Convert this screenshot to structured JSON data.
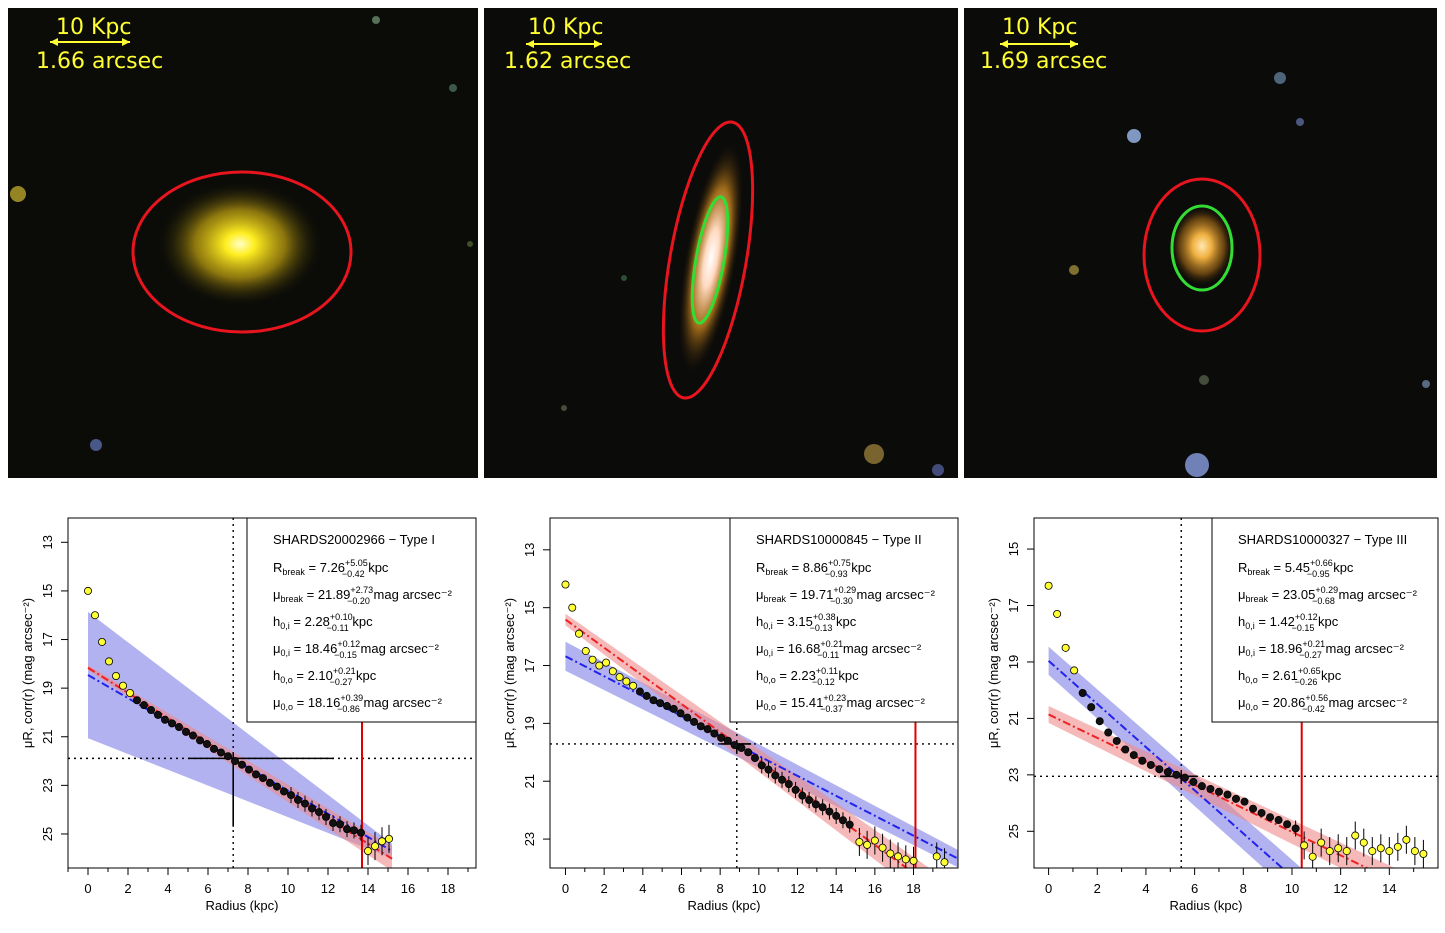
{
  "images": [
    {
      "scale_label": "10 Kpc",
      "arcsec_label": "1.66 arcsec",
      "galaxy_color": "#ffe600",
      "ellipse_outer": "#e8141e",
      "ellipse_inner": ""
    },
    {
      "scale_label": "10 Kpc",
      "arcsec_label": "1.62 arcsec",
      "galaxy_color": "#fff4e0",
      "ellipse_outer": "#e8141e",
      "ellipse_inner": "#33dd33"
    },
    {
      "scale_label": "10 Kpc",
      "arcsec_label": "1.69 arcsec",
      "galaxy_color": "#ffc64a",
      "ellipse_outer": "#e8141e",
      "ellipse_inner": "#33dd33"
    }
  ],
  "colors": {
    "inner_fit": "#2222ee",
    "inner_band": "#7f7fe6",
    "outer_fit": "#ee2222",
    "outer_band": "#f08a8a",
    "point_inner_core": "#ffff33",
    "point_fit": "#111111",
    "break_line": "#dd0000"
  },
  "chart_data": [
    {
      "type": "scatter",
      "title": "SHARDS20002966  −  Type I",
      "xlabel": "Radius (kpc)",
      "ylabel": "μR, corr(r) (mag arcsec⁻²)",
      "xlim": [
        -1,
        19.4
      ],
      "ylim": [
        26.4,
        12.0
      ],
      "xticks": [
        0,
        2,
        4,
        6,
        8,
        10,
        12,
        14,
        16,
        18
      ],
      "yticks": [
        13,
        15,
        17,
        19,
        21,
        23,
        25
      ],
      "r_break": 7.26,
      "mu_break": 21.89,
      "red_line_x": 13.7,
      "inner_fit": {
        "h": 2.28,
        "mu0": 18.46,
        "x_range": [
          0,
          15.2
        ]
      },
      "outer_fit": {
        "h": 2.1,
        "mu0": 18.16,
        "x_range": [
          0,
          15.2
        ]
      },
      "param_lines": [
        {
          "label": "R",
          "sub": "break",
          "value": "7.26",
          "sup_err": "+5.05",
          "sub_err": "−0.42",
          "unit": "kpc"
        },
        {
          "label": "μ",
          "sub": "break",
          "value": "21.89",
          "sup_err": "+2.73",
          "sub_err": "−0.20",
          "unit": "mag arcsec⁻²"
        },
        {
          "label": "h",
          "sub": "0,i",
          "value": "2.28",
          "sup_err": "+0.10",
          "sub_err": "−0.11",
          "unit": "kpc"
        },
        {
          "label": "μ",
          "sub": "0,i",
          "value": "18.46",
          "sup_err": "+0.12",
          "sub_err": "−0.15",
          "unit": "mag arcsec⁻²"
        },
        {
          "label": "h",
          "sub": "0,o",
          "value": "2.10",
          "sup_err": "+0.21",
          "sub_err": "−0.27",
          "unit": "kpc"
        },
        {
          "label": "μ",
          "sub": "0,o",
          "value": "18.16",
          "sup_err": "+0.39",
          "sub_err": "−0.86",
          "unit": "mag arcsec⁻²"
        }
      ],
      "points": [
        {
          "x": 0.0,
          "y": 15.0,
          "k": "y"
        },
        {
          "x": 0.35,
          "y": 16.0,
          "k": "y"
        },
        {
          "x": 0.7,
          "y": 17.1,
          "k": "y"
        },
        {
          "x": 1.05,
          "y": 17.9,
          "k": "y"
        },
        {
          "x": 1.4,
          "y": 18.5,
          "k": "y"
        },
        {
          "x": 1.75,
          "y": 18.9,
          "k": "y"
        },
        {
          "x": 2.1,
          "y": 19.2,
          "k": "y"
        },
        {
          "x": 2.45,
          "y": 19.5,
          "k": "b"
        },
        {
          "x": 2.8,
          "y": 19.7,
          "k": "b"
        },
        {
          "x": 3.15,
          "y": 19.9,
          "k": "b"
        },
        {
          "x": 3.5,
          "y": 20.1,
          "k": "b"
        },
        {
          "x": 3.85,
          "y": 20.3,
          "k": "b"
        },
        {
          "x": 4.2,
          "y": 20.45,
          "k": "b"
        },
        {
          "x": 4.55,
          "y": 20.6,
          "k": "b"
        },
        {
          "x": 4.9,
          "y": 20.8,
          "k": "b"
        },
        {
          "x": 5.25,
          "y": 20.95,
          "k": "b"
        },
        {
          "x": 5.6,
          "y": 21.15,
          "k": "b"
        },
        {
          "x": 5.95,
          "y": 21.3,
          "k": "b"
        },
        {
          "x": 6.3,
          "y": 21.5,
          "k": "b"
        },
        {
          "x": 6.65,
          "y": 21.65,
          "k": "b"
        },
        {
          "x": 7.0,
          "y": 21.8,
          "k": "b"
        },
        {
          "x": 7.35,
          "y": 22.0,
          "k": "b"
        },
        {
          "x": 7.7,
          "y": 22.15,
          "k": "b"
        },
        {
          "x": 8.05,
          "y": 22.35,
          "k": "b"
        },
        {
          "x": 8.4,
          "y": 22.55,
          "k": "b"
        },
        {
          "x": 8.75,
          "y": 22.7,
          "k": "b"
        },
        {
          "x": 9.1,
          "y": 22.9,
          "k": "b"
        },
        {
          "x": 9.45,
          "y": 23.05,
          "k": "b"
        },
        {
          "x": 9.8,
          "y": 23.25,
          "k": "b"
        },
        {
          "x": 10.15,
          "y": 23.4,
          "k": "b"
        },
        {
          "x": 10.5,
          "y": 23.6,
          "k": "b"
        },
        {
          "x": 10.85,
          "y": 23.75,
          "k": "b"
        },
        {
          "x": 11.2,
          "y": 23.95,
          "k": "b"
        },
        {
          "x": 11.55,
          "y": 24.1,
          "k": "b"
        },
        {
          "x": 11.9,
          "y": 24.3,
          "k": "b"
        },
        {
          "x": 12.25,
          "y": 24.55,
          "k": "b"
        },
        {
          "x": 12.6,
          "y": 24.6,
          "k": "b"
        },
        {
          "x": 12.95,
          "y": 24.8,
          "k": "b"
        },
        {
          "x": 13.3,
          "y": 24.85,
          "k": "b"
        },
        {
          "x": 13.65,
          "y": 24.95,
          "k": "b"
        },
        {
          "x": 14.0,
          "y": 25.7,
          "k": "y"
        },
        {
          "x": 14.35,
          "y": 25.5,
          "k": "y"
        },
        {
          "x": 14.7,
          "y": 25.3,
          "k": "y"
        },
        {
          "x": 15.05,
          "y": 25.2,
          "k": "y"
        }
      ]
    },
    {
      "type": "scatter",
      "title": "SHARDS10000845  −  Type II",
      "xlabel": "Radius (kpc)",
      "ylabel": "μR, corr(r) (mag arcsec⁻²)",
      "xlim": [
        -0.8,
        20.3
      ],
      "ylim": [
        24.0,
        11.9
      ],
      "xticks": [
        0,
        2,
        4,
        6,
        8,
        10,
        12,
        14,
        16,
        18
      ],
      "yticks": [
        13,
        15,
        17,
        19,
        21,
        23
      ],
      "r_break": 8.86,
      "mu_break": 19.71,
      "red_line_x": 18.1,
      "inner_fit": {
        "h": 3.15,
        "mu0": 16.68,
        "x_range": [
          0,
          20.3
        ]
      },
      "outer_fit": {
        "h": 2.23,
        "mu0": 15.41,
        "x_range": [
          0,
          20.3
        ]
      },
      "param_lines": [
        {
          "label": "R",
          "sub": "break",
          "value": "8.86",
          "sup_err": "+0.75",
          "sub_err": "−0.93",
          "unit": "kpc"
        },
        {
          "label": "μ",
          "sub": "break",
          "value": "19.71",
          "sup_err": "+0.29",
          "sub_err": "−0.30",
          "unit": "mag arcsec⁻²"
        },
        {
          "label": "h",
          "sub": "0,i",
          "value": "3.15",
          "sup_err": "+0.38",
          "sub_err": "−0.13",
          "unit": "kpc"
        },
        {
          "label": "μ",
          "sub": "0,i",
          "value": "16.68",
          "sup_err": "+0.21",
          "sub_err": "−0.11",
          "unit": "mag arcsec⁻²"
        },
        {
          "label": "h",
          "sub": "0,o",
          "value": "2.23",
          "sup_err": "+0.11",
          "sub_err": "−0.12",
          "unit": "kpc"
        },
        {
          "label": "μ",
          "sub": "0,o",
          "value": "15.41",
          "sup_err": "+0.23",
          "sub_err": "−0.37",
          "unit": "mag arcsec⁻²"
        }
      ],
      "points": [
        {
          "x": 0.0,
          "y": 14.2,
          "k": "y"
        },
        {
          "x": 0.35,
          "y": 15.0,
          "k": "y"
        },
        {
          "x": 0.7,
          "y": 15.9,
          "k": "y"
        },
        {
          "x": 1.05,
          "y": 16.5,
          "k": "y"
        },
        {
          "x": 1.4,
          "y": 16.8,
          "k": "y"
        },
        {
          "x": 1.75,
          "y": 17.0,
          "k": "y"
        },
        {
          "x": 2.1,
          "y": 16.9,
          "k": "y"
        },
        {
          "x": 2.45,
          "y": 17.2,
          "k": "y"
        },
        {
          "x": 2.8,
          "y": 17.4,
          "k": "y"
        },
        {
          "x": 3.15,
          "y": 17.55,
          "k": "y"
        },
        {
          "x": 3.5,
          "y": 17.7,
          "k": "y"
        },
        {
          "x": 3.85,
          "y": 17.9,
          "k": "b"
        },
        {
          "x": 4.2,
          "y": 18.05,
          "k": "b"
        },
        {
          "x": 4.55,
          "y": 18.2,
          "k": "b"
        },
        {
          "x": 4.9,
          "y": 18.3,
          "k": "b"
        },
        {
          "x": 5.25,
          "y": 18.4,
          "k": "b"
        },
        {
          "x": 5.6,
          "y": 18.5,
          "k": "b"
        },
        {
          "x": 5.95,
          "y": 18.65,
          "k": "b"
        },
        {
          "x": 6.3,
          "y": 18.8,
          "k": "b"
        },
        {
          "x": 6.65,
          "y": 18.95,
          "k": "b"
        },
        {
          "x": 7.0,
          "y": 19.1,
          "k": "b"
        },
        {
          "x": 7.35,
          "y": 19.2,
          "k": "b"
        },
        {
          "x": 7.7,
          "y": 19.35,
          "k": "b"
        },
        {
          "x": 8.05,
          "y": 19.5,
          "k": "b"
        },
        {
          "x": 8.4,
          "y": 19.6,
          "k": "b"
        },
        {
          "x": 8.75,
          "y": 19.75,
          "k": "b"
        },
        {
          "x": 9.1,
          "y": 19.85,
          "k": "b"
        },
        {
          "x": 9.45,
          "y": 20.0,
          "k": "b"
        },
        {
          "x": 9.8,
          "y": 20.2,
          "k": "b"
        },
        {
          "x": 10.15,
          "y": 20.45,
          "k": "b"
        },
        {
          "x": 10.5,
          "y": 20.6,
          "k": "b"
        },
        {
          "x": 10.85,
          "y": 20.8,
          "k": "b"
        },
        {
          "x": 11.2,
          "y": 20.95,
          "k": "b"
        },
        {
          "x": 11.55,
          "y": 21.1,
          "k": "b"
        },
        {
          "x": 11.9,
          "y": 21.3,
          "k": "b"
        },
        {
          "x": 12.25,
          "y": 21.5,
          "k": "b"
        },
        {
          "x": 12.6,
          "y": 21.65,
          "k": "b"
        },
        {
          "x": 12.95,
          "y": 21.8,
          "k": "b"
        },
        {
          "x": 13.3,
          "y": 21.9,
          "k": "b"
        },
        {
          "x": 13.65,
          "y": 22.05,
          "k": "b"
        },
        {
          "x": 14.0,
          "y": 22.2,
          "k": "b"
        },
        {
          "x": 14.35,
          "y": 22.35,
          "k": "b"
        },
        {
          "x": 14.7,
          "y": 22.5,
          "k": "b"
        },
        {
          "x": 15.2,
          "y": 23.1,
          "k": "y"
        },
        {
          "x": 15.6,
          "y": 23.2,
          "k": "y"
        },
        {
          "x": 16.0,
          "y": 23.05,
          "k": "y"
        },
        {
          "x": 16.4,
          "y": 23.3,
          "k": "y"
        },
        {
          "x": 16.8,
          "y": 23.5,
          "k": "y"
        },
        {
          "x": 17.2,
          "y": 23.6,
          "k": "y"
        },
        {
          "x": 17.6,
          "y": 23.7,
          "k": "y"
        },
        {
          "x": 18.0,
          "y": 23.75,
          "k": "y"
        },
        {
          "x": 19.2,
          "y": 23.6,
          "k": "y"
        },
        {
          "x": 19.6,
          "y": 23.8,
          "k": "y"
        }
      ]
    },
    {
      "type": "scatter",
      "title": "SHARDS10000327  −  Type III",
      "xlabel": "Radius (kpc)",
      "ylabel": "μR, corr(r) (mag arcsec⁻²)",
      "xlim": [
        -0.6,
        16.0
      ],
      "ylim": [
        26.3,
        13.9
      ],
      "xticks": [
        0,
        2,
        4,
        6,
        8,
        10,
        12,
        14
      ],
      "yticks": [
        15,
        17,
        19,
        21,
        23,
        25
      ],
      "r_break": 5.45,
      "mu_break": 23.05,
      "red_line_x": 10.4,
      "inner_fit": {
        "h": 1.42,
        "mu0": 18.96,
        "x_range": [
          0,
          10.4
        ]
      },
      "outer_fit": {
        "h": 2.61,
        "mu0": 20.86,
        "x_range": [
          0,
          16.0
        ]
      },
      "param_lines": [
        {
          "label": "R",
          "sub": "break",
          "value": "5.45",
          "sup_err": "+0.66",
          "sub_err": "−0.95",
          "unit": "kpc"
        },
        {
          "label": "μ",
          "sub": "break",
          "value": "23.05",
          "sup_err": "+0.29",
          "sub_err": "−0.68",
          "unit": "mag arcsec⁻²"
        },
        {
          "label": "h",
          "sub": "0,i",
          "value": "1.42",
          "sup_err": "+0.12",
          "sub_err": "−0.15",
          "unit": "kpc"
        },
        {
          "label": "μ",
          "sub": "0,i",
          "value": "18.96",
          "sup_err": "+0.21",
          "sub_err": "−0.27",
          "unit": "mag arcsec⁻²"
        },
        {
          "label": "h",
          "sub": "0,o",
          "value": "2.61",
          "sup_err": "+0.65",
          "sub_err": "−0.26",
          "unit": "kpc"
        },
        {
          "label": "μ",
          "sub": "0,o",
          "value": "20.86",
          "sup_err": "+0.56",
          "sub_err": "−0.42",
          "unit": "mag arcsec⁻²"
        }
      ],
      "points": [
        {
          "x": 0.0,
          "y": 16.3,
          "k": "y"
        },
        {
          "x": 0.35,
          "y": 17.3,
          "k": "y"
        },
        {
          "x": 0.7,
          "y": 18.5,
          "k": "y"
        },
        {
          "x": 1.05,
          "y": 19.3,
          "k": "y"
        },
        {
          "x": 1.4,
          "y": 20.1,
          "k": "b"
        },
        {
          "x": 1.75,
          "y": 20.6,
          "k": "b"
        },
        {
          "x": 2.1,
          "y": 21.1,
          "k": "b"
        },
        {
          "x": 2.45,
          "y": 21.5,
          "k": "b"
        },
        {
          "x": 2.8,
          "y": 21.8,
          "k": "b"
        },
        {
          "x": 3.15,
          "y": 22.1,
          "k": "b"
        },
        {
          "x": 3.5,
          "y": 22.3,
          "k": "b"
        },
        {
          "x": 3.85,
          "y": 22.5,
          "k": "b"
        },
        {
          "x": 4.2,
          "y": 22.65,
          "k": "b"
        },
        {
          "x": 4.55,
          "y": 22.8,
          "k": "b"
        },
        {
          "x": 4.9,
          "y": 22.9,
          "k": "b"
        },
        {
          "x": 5.25,
          "y": 23.0,
          "k": "b"
        },
        {
          "x": 5.6,
          "y": 23.1,
          "k": "b"
        },
        {
          "x": 5.95,
          "y": 23.25,
          "k": "b"
        },
        {
          "x": 6.3,
          "y": 23.4,
          "k": "b"
        },
        {
          "x": 6.65,
          "y": 23.5,
          "k": "b"
        },
        {
          "x": 7.0,
          "y": 23.6,
          "k": "b"
        },
        {
          "x": 7.35,
          "y": 23.7,
          "k": "b"
        },
        {
          "x": 7.7,
          "y": 23.85,
          "k": "b"
        },
        {
          "x": 8.05,
          "y": 23.95,
          "k": "b"
        },
        {
          "x": 8.4,
          "y": 24.2,
          "k": "b"
        },
        {
          "x": 8.75,
          "y": 24.35,
          "k": "b"
        },
        {
          "x": 9.1,
          "y": 24.5,
          "k": "b"
        },
        {
          "x": 9.45,
          "y": 24.6,
          "k": "b"
        },
        {
          "x": 9.8,
          "y": 24.75,
          "k": "b"
        },
        {
          "x": 10.15,
          "y": 24.9,
          "k": "b"
        },
        {
          "x": 10.5,
          "y": 25.5,
          "k": "y"
        },
        {
          "x": 10.85,
          "y": 25.9,
          "k": "y"
        },
        {
          "x": 11.2,
          "y": 25.4,
          "k": "y"
        },
        {
          "x": 11.55,
          "y": 25.7,
          "k": "y"
        },
        {
          "x": 11.9,
          "y": 25.6,
          "k": "y"
        },
        {
          "x": 12.25,
          "y": 25.7,
          "k": "y"
        },
        {
          "x": 12.6,
          "y": 25.15,
          "k": "y"
        },
        {
          "x": 12.95,
          "y": 25.4,
          "k": "y"
        },
        {
          "x": 13.3,
          "y": 25.7,
          "k": "y"
        },
        {
          "x": 13.65,
          "y": 25.6,
          "k": "y"
        },
        {
          "x": 14.0,
          "y": 25.7,
          "k": "y"
        },
        {
          "x": 14.35,
          "y": 25.55,
          "k": "y"
        },
        {
          "x": 14.7,
          "y": 25.3,
          "k": "y"
        },
        {
          "x": 15.05,
          "y": 25.7,
          "k": "y"
        },
        {
          "x": 15.4,
          "y": 25.8,
          "k": "y"
        }
      ]
    }
  ]
}
